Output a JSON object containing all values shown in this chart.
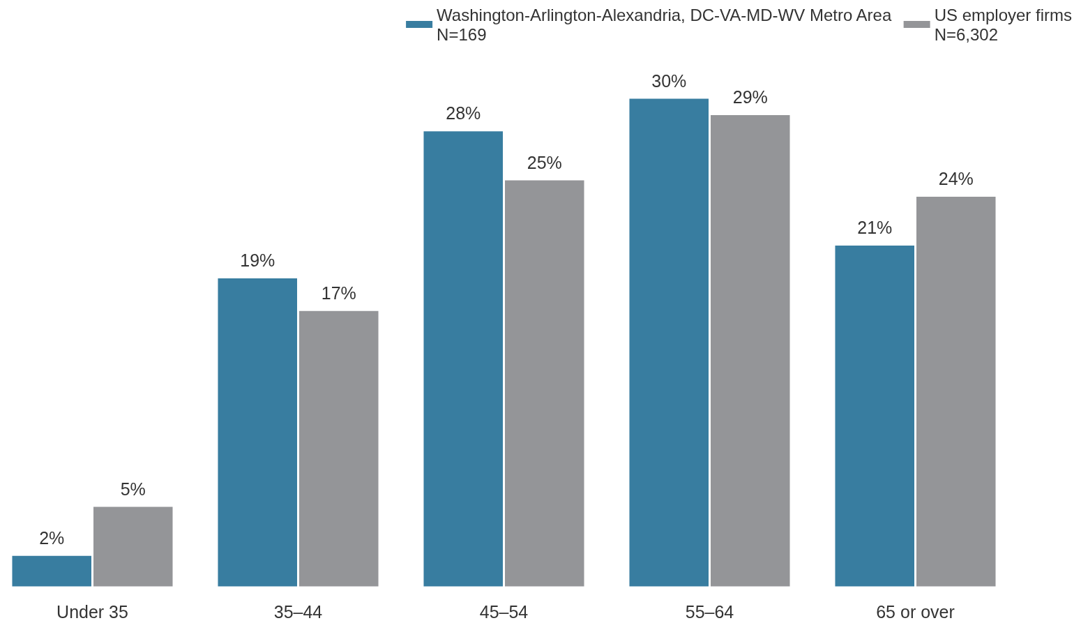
{
  "chart_data": {
    "type": "bar",
    "categories": [
      "Under 35",
      "35–44",
      "45–54",
      "55–64",
      "65 or over"
    ],
    "series": [
      {
        "name": "Washington-Arlington-Alexandria, DC-VA-MD-WV Metro Area\nN=169",
        "color": "#387da0",
        "values": [
          2,
          19,
          28,
          30,
          21
        ],
        "value_labels": [
          "2%",
          "19%",
          "28%",
          "30%",
          "21%"
        ]
      },
      {
        "name": "US employer firms\nN=6,302",
        "color": "#949598",
        "values": [
          5,
          17,
          25,
          29,
          24
        ],
        "value_labels": [
          "5%",
          "17%",
          "25%",
          "29%",
          "24%"
        ]
      }
    ],
    "legend": "top right"
  }
}
